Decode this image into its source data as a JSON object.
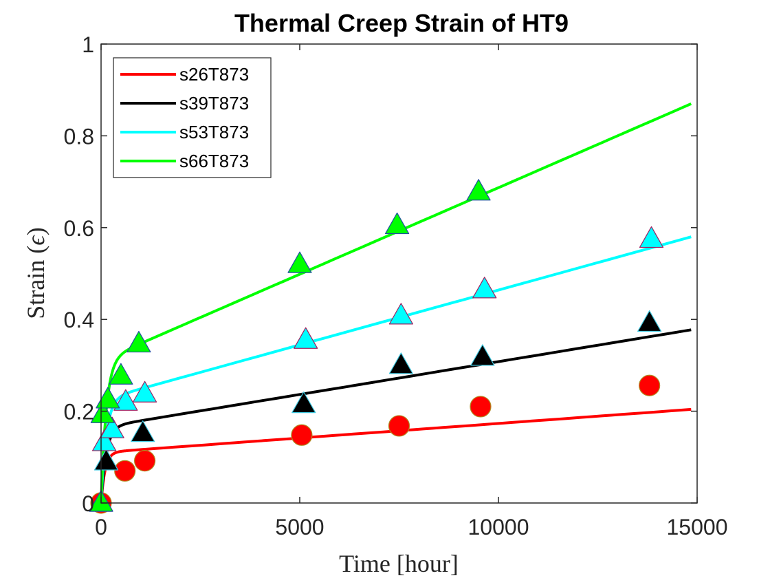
{
  "chart_data": {
    "type": "line",
    "title": "Thermal Creep Strain of HT9",
    "xlabel": "Time [hour]",
    "ylabel_prefix": "Strain (",
    "ylabel_symbol": "ϵ",
    "ylabel_suffix": ")",
    "xlim": [
      0,
      15000
    ],
    "ylim": [
      0,
      1
    ],
    "xticks": [
      0,
      5000,
      10000,
      15000
    ],
    "yticks": [
      0,
      0.2,
      0.4,
      0.6,
      0.8,
      1
    ],
    "xtick_labels": [
      "0",
      "5000",
      "10000",
      "15000"
    ],
    "ytick_labels": [
      "0",
      "0.2",
      "0.4",
      "0.6",
      "0.8",
      "1"
    ],
    "grid": false,
    "legend_position": "top-left",
    "series": [
      {
        "name": "s26T873",
        "line_color": "#ff0000",
        "marker": "circle",
        "marker_fill": "#ff0000",
        "marker_edge": "#b08a20",
        "fit": {
          "primary": 0.11,
          "rate": 6.33e-06,
          "tau": 100
        },
        "points": [
          [
            0,
            0.0
          ],
          [
            600,
            0.07
          ],
          [
            1100,
            0.092
          ],
          [
            5050,
            0.148
          ],
          [
            7500,
            0.168
          ],
          [
            9550,
            0.21
          ],
          [
            13800,
            0.256
          ]
        ]
      },
      {
        "name": "s39T873",
        "line_color": "#000000",
        "marker": "triangle",
        "marker_fill": "#000000",
        "marker_edge": "#40c8e0",
        "fit": {
          "primary": 0.165,
          "rate": 1.43e-05,
          "tau": 130
        },
        "points": [
          [
            0,
            0.0
          ],
          [
            130,
            0.09
          ],
          [
            1050,
            0.152
          ],
          [
            5100,
            0.215
          ],
          [
            7550,
            0.3
          ],
          [
            9600,
            0.318
          ],
          [
            13800,
            0.392
          ]
        ]
      },
      {
        "name": "s53T873",
        "line_color": "#00ffff",
        "marker": "triangle",
        "marker_fill": "#00ffff",
        "marker_edge": "#a02060",
        "fit": {
          "primary": 0.225,
          "rate": 2.39e-05,
          "tau": 130
        },
        "points": [
          [
            0,
            0.0
          ],
          [
            80,
            0.132
          ],
          [
            280,
            0.16
          ],
          [
            620,
            0.22
          ],
          [
            1100,
            0.238
          ],
          [
            5150,
            0.355
          ],
          [
            7550,
            0.408
          ],
          [
            9650,
            0.465
          ],
          [
            13850,
            0.575
          ]
        ]
      },
      {
        "name": "s66T873",
        "line_color": "#00ff00",
        "marker": "triangle",
        "marker_fill": "#00ff00",
        "marker_edge": "#2050a0",
        "fit": {
          "primary": 0.31,
          "rate": 3.77e-05,
          "tau": 130
        },
        "points": [
          [
            0,
            0.0
          ],
          [
            40,
            0.193
          ],
          [
            170,
            0.225
          ],
          [
            500,
            0.277
          ],
          [
            950,
            0.347
          ],
          [
            5000,
            0.52
          ],
          [
            7450,
            0.605
          ],
          [
            9500,
            0.678
          ]
        ]
      }
    ]
  }
}
